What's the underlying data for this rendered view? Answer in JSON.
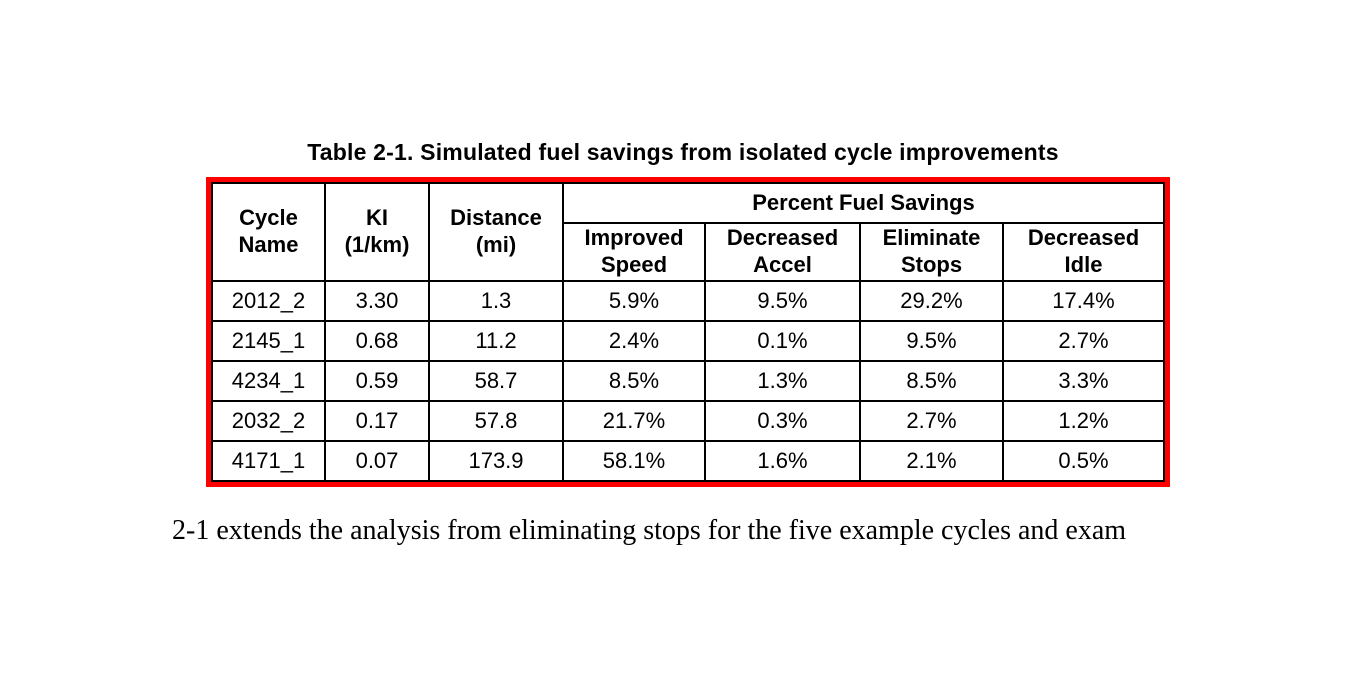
{
  "accent": {
    "table_frame_color": "#ff0000",
    "grid_color": "#000000"
  },
  "caption": "Table 2-1. Simulated fuel savings from isolated cycle improvements",
  "table": {
    "group_header": "Percent Fuel Savings",
    "columns": [
      {
        "l1": "Cycle",
        "l2": "Name"
      },
      {
        "l1": "KI",
        "l2": "(1/km)"
      },
      {
        "l1": "Distance",
        "l2": "(mi)"
      },
      {
        "l1": "Improved",
        "l2": "Speed"
      },
      {
        "l1": "Decreased",
        "l2": "Accel"
      },
      {
        "l1": "Eliminate",
        "l2": "Stops"
      },
      {
        "l1": "Decreased",
        "l2": "Idle"
      }
    ],
    "rows": [
      {
        "cells": [
          "2012_2",
          "3.30",
          "1.3",
          "5.9%",
          "9.5%",
          "29.2%",
          "17.4%"
        ]
      },
      {
        "cells": [
          "2145_1",
          "0.68",
          "11.2",
          "2.4%",
          "0.1%",
          "9.5%",
          "2.7%"
        ]
      },
      {
        "cells": [
          "4234_1",
          "0.59",
          "58.7",
          "8.5%",
          "1.3%",
          "8.5%",
          "3.3%"
        ]
      },
      {
        "cells": [
          "2032_2",
          "0.17",
          "57.8",
          "21.7%",
          "0.3%",
          "2.7%",
          "1.2%"
        ]
      },
      {
        "cells": [
          "4171_1",
          "0.07",
          "173.9",
          "58.1%",
          "1.6%",
          "2.1%",
          "0.5%"
        ]
      }
    ]
  },
  "body_text": "2-1 extends the analysis from eliminating stops for the five example cycles and exam"
}
